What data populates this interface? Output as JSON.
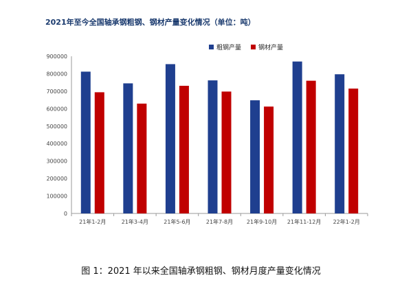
{
  "title": "2021年至今全国轴承钢粗钢、钢材产量变化情况（单位：吨）",
  "caption": "图 1：2021 年以来全国轴承钢粗钢、钢材月度产量变化情况",
  "chart_data": {
    "type": "bar",
    "title": "2021年至今全国轴承钢粗钢、钢材产量变化情况（单位：吨）",
    "unit": "吨",
    "categories": [
      "21年1-2月",
      "21年3-4月",
      "21年5-6月",
      "21年7-8月",
      "21年9-10月",
      "21年11-12月",
      "22年1-2月"
    ],
    "series": [
      {
        "name": "粗钢产量",
        "color": "#1f3f8f",
        "values": [
          812000,
          745000,
          855000,
          762000,
          648000,
          870000,
          797000
        ]
      },
      {
        "name": "钢材产量",
        "color": "#c00000",
        "values": [
          694000,
          629000,
          731000,
          698000,
          612000,
          760000,
          715000
        ]
      }
    ],
    "ylim": [
      0,
      900000
    ],
    "yticks": [
      "0",
      "100000",
      "200000",
      "300000",
      "400000",
      "500000",
      "600000",
      "700000",
      "800000",
      "900000"
    ],
    "grid": false,
    "legend": "top-right"
  }
}
